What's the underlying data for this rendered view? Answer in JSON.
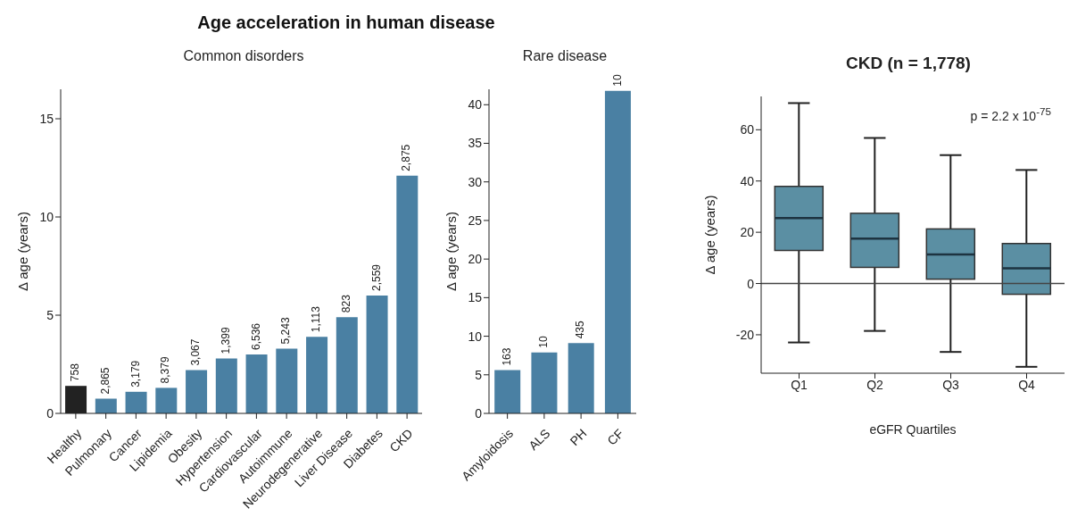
{
  "chart_data": [
    {
      "type": "bar",
      "title": "Age acceleration in human disease",
      "subtitle": "Common disorders",
      "ylabel": "Δ age (years)",
      "categories": [
        "Healthy",
        "Pulmonary",
        "Cancer",
        "Lipidemia",
        "Obesity",
        "Hypertension",
        "Cardiovascular",
        "Autoimmune",
        "Neurodegenerative",
        "Liver Disease",
        "Diabetes",
        "CKD"
      ],
      "values": [
        1.4,
        0.75,
        1.1,
        1.3,
        2.2,
        2.8,
        3.0,
        3.3,
        3.9,
        4.9,
        6.0,
        12.1
      ],
      "colors": [
        "#222222",
        "#4a80a3",
        "#4a80a3",
        "#4a80a3",
        "#4a80a3",
        "#4a80a3",
        "#4a80a3",
        "#4a80a3",
        "#4a80a3",
        "#4a80a3",
        "#4a80a3",
        "#4a80a3"
      ],
      "ylim": [
        0,
        16.5
      ],
      "yticks": [
        0,
        5,
        10,
        15
      ],
      "annotations": [
        {
          "text": "758",
          "x": "Healthy",
          "y": 1.4
        },
        {
          "text": "2,865",
          "x": "Pulmonary",
          "y": 0.75
        },
        {
          "text": "3,179",
          "x": "Cancer",
          "y": 1.1
        },
        {
          "text": "8,379",
          "x": "Lipidemia",
          "y": 1.3
        },
        {
          "text": "3,067",
          "x": "Obesity",
          "y": 2.2
        },
        {
          "text": "1,399",
          "x": "Hypertension",
          "y": 2.8
        },
        {
          "text": "6,536",
          "x": "Cardiovascular",
          "y": 3.0
        },
        {
          "text": "5,243",
          "x": "Autoimmune",
          "y": 3.3
        },
        {
          "text": "1,113",
          "x": "Neurodegenerative",
          "y": 3.9
        },
        {
          "text": "823",
          "x": "Liver Disease",
          "y": 4.9
        },
        {
          "text": "2,559",
          "x": "Diabetes",
          "y": 6.0
        },
        {
          "text": "2,875",
          "x": "CKD",
          "y": 12.1
        }
      ]
    },
    {
      "type": "bar",
      "subtitle": "Rare disease",
      "ylabel": "Δ age (years)",
      "categories": [
        "Amyloidosis",
        "ALS",
        "PH",
        "CF"
      ],
      "values": [
        5.6,
        7.9,
        9.1,
        41.8
      ],
      "colors": [
        "#4a80a3",
        "#4a80a3",
        "#4a80a3",
        "#4a80a3"
      ],
      "ylim": [
        0,
        42
      ],
      "yticks": [
        0,
        5,
        10,
        15,
        20,
        25,
        30,
        35,
        40
      ],
      "annotations": [
        {
          "text": "163",
          "x": "Amyloidosis",
          "y": 5.6
        },
        {
          "text": "10",
          "x": "ALS",
          "y": 7.9
        },
        {
          "text": "435",
          "x": "PH",
          "y": 9.1
        },
        {
          "text": "10",
          "x": "CF",
          "y": 41.8
        }
      ]
    },
    {
      "type": "box",
      "title": "CKD (n = 1,778)",
      "xlabel": "eGFR Quartiles",
      "ylabel": "Δ age (years)",
      "categories": [
        "Q1",
        "Q2",
        "Q3",
        "Q4"
      ],
      "color": "#5b8fa3",
      "boxes": [
        {
          "low": -23,
          "q1": 12.9,
          "median": 25.5,
          "q3": 37.9,
          "high": 70.4
        },
        {
          "low": -18.5,
          "q1": 6.3,
          "median": 17.5,
          "q3": 27.4,
          "high": 56.8
        },
        {
          "low": -26.7,
          "q1": 1.7,
          "median": 11.3,
          "q3": 21.3,
          "high": 50.1
        },
        {
          "low": -32.5,
          "q1": -4.2,
          "median": 5.9,
          "q3": 15.6,
          "high": 44.3
        }
      ],
      "ylim": [
        -35,
        73
      ],
      "yticks": [
        -20,
        0,
        20,
        40,
        60
      ],
      "ref_lines": [
        {
          "axis": "y",
          "value": 0
        }
      ],
      "annotations": [
        "p = 2.2 x 10$^{-75}$"
      ]
    }
  ]
}
